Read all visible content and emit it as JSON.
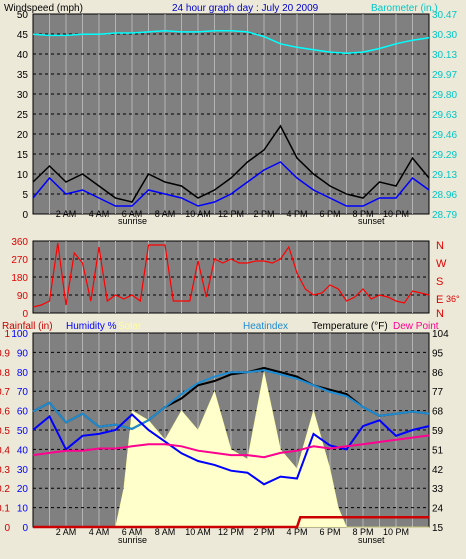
{
  "chart_data": [
    {
      "type": "line",
      "panel": "wind-barometer",
      "title": "24 hour graph day : July 20 2009",
      "ylabel_left": "Windspeed (mph)",
      "ylabel_right": "Barometer (in.)",
      "y_left_ticks": [
        "50",
        "45",
        "40",
        "35",
        "30",
        "25",
        "20",
        "15",
        "10",
        "5",
        "0"
      ],
      "y_right_ticks": [
        "30.47",
        "30.30",
        "30.13",
        "29.97",
        "29.80",
        "29.63",
        "29.46",
        "29.29",
        "29.13",
        "28.96",
        "28.79"
      ],
      "x_ticks": [
        "2 AM",
        "4 AM",
        "6 AM",
        "8 AM",
        "10 AM",
        "12 PM",
        "2 PM",
        "4 PM",
        "6 PM",
        "8 PM",
        "10 PM"
      ],
      "x_markers": [
        "sunrise",
        "sunset"
      ],
      "ylim_left": [
        0,
        50
      ],
      "ylim_right": [
        28.79,
        30.47
      ],
      "grid": true,
      "series": [
        {
          "name": "Windspeed (mph)",
          "color": "#000000",
          "x": [
            0,
            1,
            2,
            3,
            4,
            5,
            6,
            7,
            8,
            9,
            10,
            11,
            12,
            13,
            14,
            15,
            16,
            17,
            18,
            19,
            20,
            21,
            22,
            23,
            24
          ],
          "values": [
            8,
            12,
            8,
            10,
            7,
            4,
            3,
            10,
            8,
            7,
            4,
            6,
            9,
            13,
            16,
            22,
            14,
            10,
            7,
            5,
            4,
            8,
            7,
            14,
            9
          ]
        },
        {
          "name": "Wind gust (mph)",
          "color": "#0000ff",
          "x": [
            0,
            1,
            2,
            3,
            4,
            5,
            6,
            7,
            8,
            9,
            10,
            11,
            12,
            13,
            14,
            15,
            16,
            17,
            18,
            19,
            20,
            21,
            22,
            23,
            24
          ],
          "values": [
            4,
            9,
            5,
            6,
            4,
            2,
            2,
            6,
            5,
            4,
            2,
            3,
            5,
            8,
            11,
            13,
            9,
            6,
            4,
            2,
            2,
            4,
            4,
            9,
            6
          ]
        },
        {
          "name": "Barometer (in.)",
          "color": "#00ffff",
          "x": [
            0,
            1,
            2,
            3,
            4,
            5,
            6,
            7,
            8,
            9,
            10,
            11,
            12,
            13,
            14,
            15,
            16,
            17,
            18,
            19,
            20,
            21,
            22,
            23,
            24
          ],
          "values": [
            30.3,
            30.29,
            30.29,
            30.3,
            30.3,
            30.31,
            30.31,
            30.32,
            30.33,
            30.32,
            30.32,
            30.33,
            30.33,
            30.32,
            30.28,
            30.22,
            30.19,
            30.17,
            30.15,
            30.14,
            30.15,
            30.18,
            30.22,
            30.25,
            30.27
          ]
        }
      ]
    },
    {
      "type": "scatter",
      "panel": "wind-direction",
      "ylabel_left": "",
      "y_left_ticks": [
        "360",
        "270",
        "180",
        "90",
        "0"
      ],
      "y_right_ticks": [
        "N",
        "W",
        "S",
        "E",
        "N"
      ],
      "right_note": "36°",
      "ylim_left": [
        0,
        360
      ],
      "grid": true,
      "series": [
        {
          "name": "Wind direction",
          "color": "#ff0000",
          "x": [
            0,
            0.5,
            1,
            1.5,
            2,
            2.5,
            3,
            3.5,
            4,
            4.5,
            5,
            5.5,
            6,
            6.5,
            7,
            7.5,
            8,
            8.5,
            9,
            9.5,
            10,
            10.5,
            11,
            11.5,
            12,
            12.5,
            13,
            13.5,
            14,
            14.5,
            15,
            15.5,
            16,
            16.5,
            17,
            17.5,
            18,
            18.5,
            19,
            19.5,
            20,
            20.5,
            21,
            21.5,
            22,
            22.5,
            23,
            23.5,
            24
          ],
          "values": [
            30,
            40,
            60,
            350,
            40,
            300,
            250,
            60,
            330,
            60,
            90,
            70,
            90,
            60,
            340,
            340,
            340,
            60,
            60,
            60,
            260,
            80,
            270,
            250,
            270,
            250,
            250,
            260,
            260,
            250,
            270,
            330,
            200,
            120,
            90,
            100,
            140,
            120,
            60,
            80,
            120,
            70,
            90,
            80,
            60,
            50,
            110,
            100,
            90
          ]
        }
      ]
    },
    {
      "type": "line",
      "panel": "rain-humidity-solar-temp",
      "ylabels": [
        "Rainfall (in)",
        "Humidity %",
        "Solar",
        "Heatindex",
        "Temperature (°F)",
        "Dew Point"
      ],
      "y_rain_ticks": [
        "1",
        "0.9",
        "0.8",
        "0.7",
        "0.6",
        "0.5",
        "0.4",
        "0.3",
        "0.2",
        "0.1",
        "0"
      ],
      "y_humidity_ticks": [
        "100",
        "90",
        "80",
        "70",
        "60",
        "50",
        "40",
        "30",
        "20",
        "10",
        "0"
      ],
      "y_right_ticks": [
        "104",
        "95",
        "86",
        "77",
        "68",
        "59",
        "51",
        "42",
        "33",
        "24",
        "15"
      ],
      "ylim_right": [
        15,
        104
      ],
      "ylim_left": [
        0,
        100
      ],
      "grid": true,
      "series": [
        {
          "name": "Temperature (°F)",
          "color": "#000000",
          "x": [
            0,
            1,
            2,
            3,
            4,
            5,
            6,
            7,
            8,
            9,
            10,
            11,
            12,
            13,
            14,
            15,
            16,
            17,
            18,
            19,
            20,
            21,
            22,
            23,
            24
          ],
          "values": [
            68,
            72,
            63,
            67,
            61,
            62,
            60,
            64,
            70,
            74,
            80,
            82,
            85,
            86,
            88,
            86,
            84,
            80,
            78,
            76,
            70,
            66,
            67,
            68,
            67
          ]
        },
        {
          "name": "Heatindex",
          "color": "#1e8cd2",
          "x": [
            0,
            1,
            2,
            3,
            4,
            5,
            6,
            7,
            8,
            9,
            10,
            11,
            12,
            13,
            14,
            15,
            16,
            17,
            18,
            19,
            20,
            21,
            22,
            23,
            24
          ],
          "values": [
            68,
            72,
            63,
            67,
            61,
            62,
            60,
            64,
            70,
            76,
            81,
            84,
            86,
            86,
            87,
            85,
            83,
            80,
            77,
            75,
            70,
            66,
            67,
            68,
            67
          ]
        },
        {
          "name": "Humidity %",
          "color": "#0000ff",
          "x": [
            0,
            1,
            2,
            3,
            4,
            5,
            6,
            7,
            8,
            9,
            10,
            11,
            12,
            13,
            14,
            15,
            16,
            17,
            18,
            19,
            20,
            21,
            22,
            23,
            24
          ],
          "values": [
            50,
            57,
            40,
            47,
            48,
            50,
            58,
            50,
            44,
            38,
            34,
            32,
            29,
            28,
            22,
            26,
            25,
            48,
            42,
            40,
            52,
            55,
            47,
            50,
            52
          ]
        },
        {
          "name": "Dew Point",
          "color": "#ff0090",
          "x": [
            0,
            1,
            2,
            3,
            4,
            5,
            6,
            7,
            8,
            9,
            10,
            11,
            12,
            13,
            14,
            15,
            16,
            17,
            18,
            19,
            20,
            21,
            22,
            23,
            24
          ],
          "values": [
            48,
            49,
            50,
            50,
            51,
            51,
            52,
            53,
            53,
            52,
            50,
            49,
            48,
            48,
            47,
            49,
            50,
            52,
            51,
            52,
            53,
            54,
            55,
            56,
            57
          ]
        },
        {
          "name": "Solar",
          "color": "#ffffcc",
          "x": [
            0,
            5,
            5.5,
            6,
            7,
            8,
            9,
            10,
            11,
            12,
            13,
            14,
            15,
            16,
            17,
            18,
            18.5,
            19,
            24
          ],
          "values": [
            0,
            0,
            20,
            60,
            55,
            45,
            60,
            50,
            70,
            40,
            35,
            80,
            40,
            30,
            60,
            30,
            10,
            0,
            0
          ]
        },
        {
          "name": "Rainfall (in)",
          "color": "#cc0000",
          "x": [
            0,
            16,
            16.2,
            24
          ],
          "values": [
            0,
            0,
            0.05,
            0.05
          ]
        }
      ]
    }
  ],
  "panel1": {
    "title": "24 hour graph day : July 20 2009",
    "left_label": "Windspeed (mph)",
    "right_label": "Barometer (in.)",
    "sunrise": "sunrise",
    "sunset": "sunset"
  },
  "panel2": {
    "compass": [
      "N",
      "W",
      "S",
      "E",
      "N"
    ],
    "right_note": "36°"
  },
  "panel3": {
    "rain_label": "Rainfall (in)",
    "humidity_label": "Humidity %",
    "solar_label": "Solar",
    "heatindex_label": "Heatindex",
    "temp_label": "Temperature (°F)",
    "dew_label": "Dew Point",
    "sunrise": "sunrise",
    "sunset": "sunset"
  },
  "colors": {
    "panel_bg": "#808080",
    "grid": "#000000",
    "wind": "#000000",
    "gust": "#0000ff",
    "baro": "#00ffff",
    "direction": "#ff0000",
    "temp": "#000000",
    "heat": "#1e8cd2",
    "humidity": "#0000ff",
    "dew": "#ff0090",
    "solar": "#ffffcc",
    "rain": "#cc0000"
  }
}
